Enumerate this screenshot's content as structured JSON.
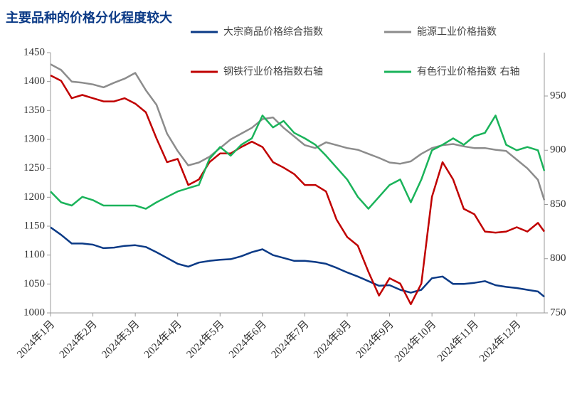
{
  "chart_data": {
    "type": "line",
    "title": "主要品种的价格分化程度较大",
    "x": [
      1,
      1.25,
      1.5,
      1.75,
      2,
      2.25,
      2.5,
      2.75,
      3,
      3.25,
      3.5,
      3.75,
      4,
      4.25,
      4.5,
      4.75,
      5,
      5.25,
      5.5,
      5.75,
      6,
      6.25,
      6.5,
      6.75,
      7,
      7.25,
      7.5,
      7.75,
      8,
      8.25,
      8.5,
      8.75,
      9,
      9.25,
      9.5,
      9.75,
      10,
      10.25,
      10.5,
      10.75,
      11,
      11.25,
      11.5,
      11.75,
      12,
      12.25,
      12.5,
      12.65
    ],
    "xlim": [
      1,
      12.65
    ],
    "xticks": [
      {
        "value": 1,
        "label": "2024年1月"
      },
      {
        "value": 2,
        "label": "2024年2月"
      },
      {
        "value": 3,
        "label": "2024年3月"
      },
      {
        "value": 4,
        "label": "2024年4月"
      },
      {
        "value": 5,
        "label": "2024年5月"
      },
      {
        "value": 6,
        "label": "2024年6月"
      },
      {
        "value": 7,
        "label": "2024年7月"
      },
      {
        "value": 8,
        "label": "2024年8月"
      },
      {
        "value": 9,
        "label": "2024年9月"
      },
      {
        "value": 10,
        "label": "2024年10月"
      },
      {
        "value": 11,
        "label": "2024年11月"
      },
      {
        "value": 12,
        "label": "2024年12月"
      }
    ],
    "ylim": [
      1000,
      1450
    ],
    "yticks": [
      1000,
      1050,
      1100,
      1150,
      1200,
      1250,
      1300,
      1350,
      1400,
      1450
    ],
    "y2lim": [
      750,
      990
    ],
    "y2ticks": [
      750,
      800,
      850,
      900,
      950
    ],
    "series": [
      {
        "name": "大宗商品价格综合指数",
        "color": "#0b3a86",
        "values": [
          1148,
          1135,
          1120,
          1120,
          1118,
          1112,
          1113,
          1116,
          1117,
          1114,
          1105,
          1095,
          1085,
          1080,
          1087,
          1090,
          1092,
          1093,
          1098,
          1105,
          1110,
          1100,
          1095,
          1090,
          1090,
          1088,
          1085,
          1078,
          1070,
          1063,
          1055,
          1047,
          1048,
          1040,
          1035,
          1040,
          1060,
          1063,
          1050,
          1050,
          1052,
          1055,
          1048,
          1045,
          1043,
          1040,
          1037,
          1028
        ]
      },
      {
        "name": "能源工业价格指数",
        "color": "#8c8c8c",
        "values": [
          1430,
          1420,
          1400,
          1398,
          1395,
          1390,
          1398,
          1405,
          1415,
          1385,
          1360,
          1310,
          1280,
          1255,
          1260,
          1270,
          1285,
          1300,
          1310,
          1320,
          1335,
          1338,
          1320,
          1305,
          1290,
          1285,
          1295,
          1290,
          1285,
          1282,
          1275,
          1268,
          1260,
          1258,
          1262,
          1275,
          1285,
          1290,
          1292,
          1288,
          1285,
          1285,
          1282,
          1280,
          1265,
          1250,
          1230,
          1195
        ]
      },
      {
        "name": "钢铁行业价格指数右轴",
        "color": "#c00000",
        "axis": "y2",
        "values": [
          969,
          964,
          948,
          951,
          948,
          945,
          945,
          948,
          943,
          935,
          911,
          889,
          892,
          868,
          873,
          889,
          897,
          897,
          903,
          908,
          903,
          889,
          884,
          878,
          868,
          868,
          862,
          836,
          820,
          812,
          788,
          766,
          782,
          777,
          758,
          777,
          857,
          889,
          873,
          846,
          841,
          825,
          824,
          825,
          829,
          825,
          833,
          825
        ]
      },
      {
        "name": "有色行业价格指数 右轴",
        "color": "#1ab35a",
        "axis": "y2",
        "values": [
          862,
          852,
          849,
          857,
          854,
          849,
          849,
          849,
          849,
          846,
          852,
          857,
          862,
          865,
          868,
          892,
          903,
          895,
          905,
          911,
          932,
          921,
          927,
          916,
          911,
          905,
          895,
          884,
          873,
          857,
          846,
          857,
          868,
          873,
          852,
          873,
          900,
          905,
          911,
          905,
          913,
          916,
          932,
          905,
          900,
          903,
          900,
          881
        ]
      }
    ]
  }
}
